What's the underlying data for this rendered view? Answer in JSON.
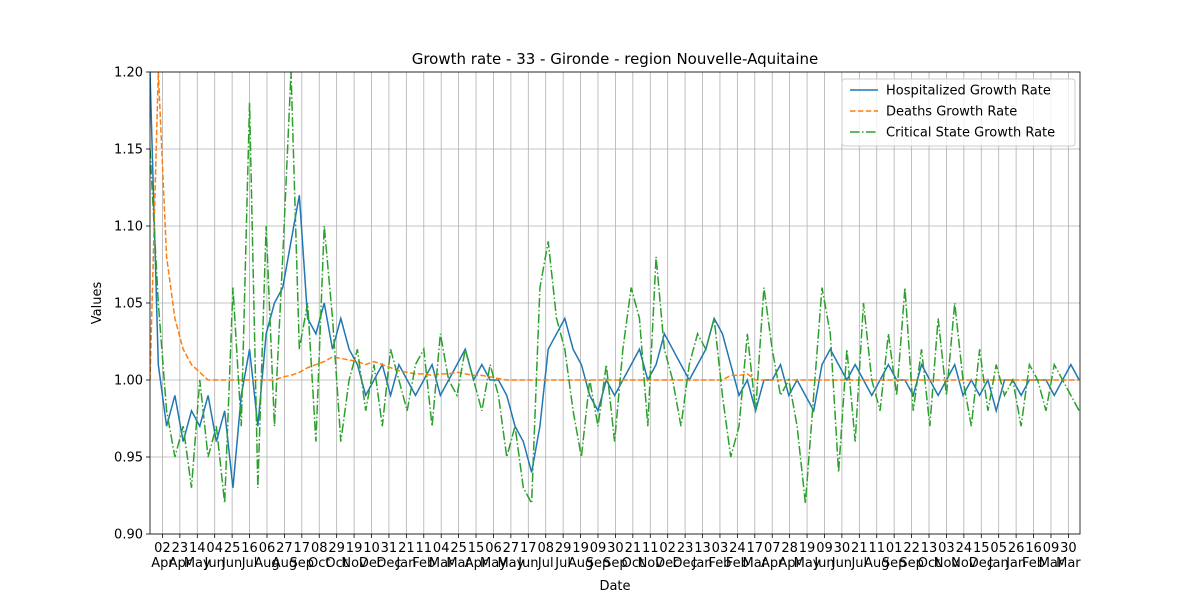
{
  "chart_data": {
    "type": "line",
    "title": "Growth rate - 33 - Gironde - region Nouvelle-Aquitaine",
    "xlabel": "Date",
    "ylabel": "Values",
    "x": [
      0,
      10,
      20,
      30,
      40,
      50,
      60,
      70,
      80,
      90,
      100,
      110,
      120,
      130,
      140,
      150,
      160,
      170,
      180,
      190,
      200,
      210,
      220,
      230,
      240,
      250,
      260,
      270,
      280,
      290,
      300,
      310,
      320,
      330,
      340,
      350,
      360,
      370,
      380,
      390,
      400,
      410,
      420,
      430,
      440,
      450,
      460,
      470,
      480,
      490,
      500,
      510,
      520,
      530,
      540,
      550,
      560,
      570,
      580,
      590,
      600,
      610,
      620,
      630,
      640,
      650,
      660,
      670,
      680,
      690,
      700,
      710,
      720,
      730,
      740,
      750,
      760,
      770,
      780,
      790,
      800,
      810,
      820,
      830,
      840,
      850,
      860,
      870,
      880,
      890,
      900,
      910,
      920,
      930,
      940,
      950,
      960,
      970,
      980,
      990,
      1000,
      1010,
      1020,
      1030,
      1040,
      1050,
      1060,
      1070,
      1080,
      1090,
      1100,
      1110,
      1120
    ],
    "series": [
      {
        "name": "Hospitalized Growth Rate",
        "color": "#1f77b4",
        "style": "solid",
        "values": [
          1.2,
          1.01,
          0.97,
          0.99,
          0.96,
          0.98,
          0.97,
          0.99,
          0.96,
          0.98,
          0.93,
          0.99,
          1.02,
          0.97,
          1.03,
          1.05,
          1.06,
          1.09,
          1.12,
          1.04,
          1.03,
          1.05,
          1.02,
          1.04,
          1.02,
          1.01,
          0.99,
          1.0,
          1.01,
          0.99,
          1.01,
          1.0,
          0.99,
          1.0,
          1.01,
          0.99,
          1.0,
          1.01,
          1.02,
          1.0,
          1.01,
          1.0,
          1.0,
          0.99,
          0.97,
          0.96,
          0.94,
          0.97,
          1.02,
          1.03,
          1.04,
          1.02,
          1.01,
          0.99,
          0.98,
          1.0,
          0.99,
          1.0,
          1.01,
          1.02,
          1.0,
          1.01,
          1.03,
          1.02,
          1.01,
          1.0,
          1.01,
          1.02,
          1.04,
          1.03,
          1.01,
          0.99,
          1.0,
          0.98,
          1.0,
          1.0,
          1.01,
          0.99,
          1.0,
          0.99,
          0.98,
          1.01,
          1.02,
          1.01,
          1.0,
          1.01,
          1.0,
          0.99,
          1.0,
          1.01,
          1.0,
          1.0,
          0.99,
          1.01,
          1.0,
          0.99,
          1.0,
          1.01,
          0.99,
          1.0,
          0.99,
          1.0,
          0.98,
          1.0,
          1.0,
          0.99,
          1.0,
          1.0,
          1.0,
          0.99,
          1.0,
          1.01,
          1.0
        ]
      },
      {
        "name": "Deaths Growth Rate",
        "color": "#ff7f0e",
        "style": "dashed",
        "values": [
          1.0,
          1.2,
          1.08,
          1.04,
          1.02,
          1.01,
          1.005,
          1.0,
          1.0,
          1.0,
          1.0,
          1.0,
          1.0,
          1.0,
          1.0,
          1.0,
          1.002,
          1.003,
          1.005,
          1.008,
          1.01,
          1.012,
          1.015,
          1.014,
          1.013,
          1.012,
          1.01,
          1.012,
          1.01,
          1.008,
          1.006,
          1.005,
          1.004,
          1.004,
          1.003,
          1.004,
          1.004,
          1.005,
          1.004,
          1.003,
          1.003,
          1.002,
          1.001,
          1.0,
          1.0,
          1.0,
          1.0,
          1.0,
          1.0,
          1.0,
          1.0,
          1.0,
          1.0,
          1.0,
          1.0,
          1.0,
          1.0,
          1.0,
          1.0,
          1.0,
          1.0,
          1.0,
          1.0,
          1.0,
          1.0,
          1.0,
          1.0,
          1.0,
          1.0,
          1.0,
          1.003,
          1.003,
          1.004,
          1.0,
          1.0,
          1.0,
          1.0,
          1.0,
          1.0,
          1.0,
          1.0,
          1.0,
          1.0,
          1.0,
          1.0,
          1.0,
          1.0,
          1.0,
          1.0,
          1.0,
          1.0,
          1.0,
          1.0,
          1.0,
          1.0,
          1.0,
          1.0,
          1.0,
          1.0,
          1.0,
          1.0,
          1.0,
          1.0,
          1.0,
          1.0,
          1.0,
          1.0,
          1.0,
          1.0,
          1.0,
          1.0,
          1.0,
          1.0
        ]
      },
      {
        "name": "Critical State Growth Rate",
        "color": "#2ca02c",
        "style": "dashdot",
        "values": [
          1.15,
          1.05,
          0.98,
          0.95,
          0.97,
          0.93,
          1.0,
          0.95,
          0.97,
          0.92,
          1.06,
          0.97,
          1.18,
          0.93,
          1.1,
          0.97,
          1.08,
          1.2,
          1.02,
          1.05,
          0.96,
          1.1,
          1.04,
          0.96,
          1.0,
          1.02,
          0.98,
          1.01,
          0.97,
          1.02,
          1.0,
          0.98,
          1.01,
          1.02,
          0.97,
          1.03,
          1.0,
          0.99,
          1.02,
          1.0,
          0.98,
          1.01,
          0.99,
          0.95,
          0.97,
          0.93,
          0.92,
          1.06,
          1.09,
          1.04,
          1.02,
          0.98,
          0.95,
          1.0,
          0.97,
          1.01,
          0.96,
          1.02,
          1.06,
          1.04,
          0.97,
          1.08,
          1.02,
          1.0,
          0.97,
          1.01,
          1.03,
          1.02,
          1.04,
          0.99,
          0.95,
          0.97,
          1.03,
          0.98,
          1.06,
          1.02,
          0.99,
          1.0,
          0.97,
          0.92,
          0.99,
          1.06,
          1.03,
          0.94,
          1.02,
          0.96,
          1.05,
          1.0,
          0.98,
          1.03,
          0.99,
          1.06,
          0.98,
          1.02,
          0.97,
          1.04,
          0.99,
          1.05,
          1.0,
          0.97,
          1.02,
          0.98,
          1.01,
          0.99,
          1.0,
          0.97,
          1.01,
          1.0,
          0.98,
          1.01,
          1.0,
          0.99,
          0.98
        ]
      }
    ],
    "xlim": [
      0,
      1121
    ],
    "xticks": [
      {
        "value": 15,
        "label": "02 Apr"
      },
      {
        "value": 36,
        "label": "23 Apr"
      },
      {
        "value": 57,
        "label": "14 May"
      },
      {
        "value": 78,
        "label": "04 Jun"
      },
      {
        "value": 99,
        "label": "25 Jun"
      },
      {
        "value": 120,
        "label": "16 Jul"
      },
      {
        "value": 141,
        "label": "06 Aug"
      },
      {
        "value": 162,
        "label": "27 Aug"
      },
      {
        "value": 183,
        "label": "17 Sep"
      },
      {
        "value": 204,
        "label": "08 Oct"
      },
      {
        "value": 225,
        "label": "29 Oct"
      },
      {
        "value": 246,
        "label": "19 Nov"
      },
      {
        "value": 267,
        "label": "10 Dec"
      },
      {
        "value": 288,
        "label": "31 Dec"
      },
      {
        "value": 309,
        "label": "21 Jan"
      },
      {
        "value": 330,
        "label": "11 Feb"
      },
      {
        "value": 351,
        "label": "04 Mar"
      },
      {
        "value": 372,
        "label": "25 Mar"
      },
      {
        "value": 393,
        "label": "15 Apr"
      },
      {
        "value": 414,
        "label": "06 May"
      },
      {
        "value": 435,
        "label": "27 May"
      },
      {
        "value": 456,
        "label": "17 Jun"
      },
      {
        "value": 477,
        "label": "08 Jul"
      },
      {
        "value": 498,
        "label": "29 Jul"
      },
      {
        "value": 519,
        "label": "19 Aug"
      },
      {
        "value": 540,
        "label": "09 Sep"
      },
      {
        "value": 561,
        "label": "30 Sep"
      },
      {
        "value": 582,
        "label": "21 Oct"
      },
      {
        "value": 603,
        "label": "11 Nov"
      },
      {
        "value": 624,
        "label": "02 Dec"
      },
      {
        "value": 645,
        "label": "23 Dec"
      },
      {
        "value": 666,
        "label": "13 Jan"
      },
      {
        "value": 687,
        "label": "03 Feb"
      },
      {
        "value": 708,
        "label": "24 Feb"
      },
      {
        "value": 729,
        "label": "17 Mar"
      },
      {
        "value": 750,
        "label": "07 Apr"
      },
      {
        "value": 771,
        "label": "28 Apr"
      },
      {
        "value": 792,
        "label": "19 May"
      },
      {
        "value": 813,
        "label": "09 Jun"
      },
      {
        "value": 834,
        "label": "30 Jun"
      },
      {
        "value": 855,
        "label": "21 Jul"
      },
      {
        "value": 876,
        "label": "11 Aug"
      },
      {
        "value": 897,
        "label": "01 Sep"
      },
      {
        "value": 918,
        "label": "22 Sep"
      },
      {
        "value": 939,
        "label": "13 Oct"
      },
      {
        "value": 960,
        "label": "03 Nov"
      },
      {
        "value": 981,
        "label": "24 Nov"
      },
      {
        "value": 1002,
        "label": "15 Dec"
      },
      {
        "value": 1023,
        "label": "05 Jan"
      },
      {
        "value": 1044,
        "label": "26 Jan"
      },
      {
        "value": 1065,
        "label": "16 Feb"
      },
      {
        "value": 1086,
        "label": "09 Mar"
      },
      {
        "value": 1107,
        "label": "30 Mar"
      }
    ],
    "ylim": [
      0.9,
      1.2
    ],
    "yticks": [
      {
        "value": 0.9,
        "label": "0.90"
      },
      {
        "value": 0.95,
        "label": "0.95"
      },
      {
        "value": 1.0,
        "label": "1.00"
      },
      {
        "value": 1.05,
        "label": "1.05"
      },
      {
        "value": 1.1,
        "label": "1.10"
      },
      {
        "value": 1.15,
        "label": "1.15"
      },
      {
        "value": 1.2,
        "label": "1.20"
      }
    ],
    "grid": true,
    "legend": "upper right"
  }
}
